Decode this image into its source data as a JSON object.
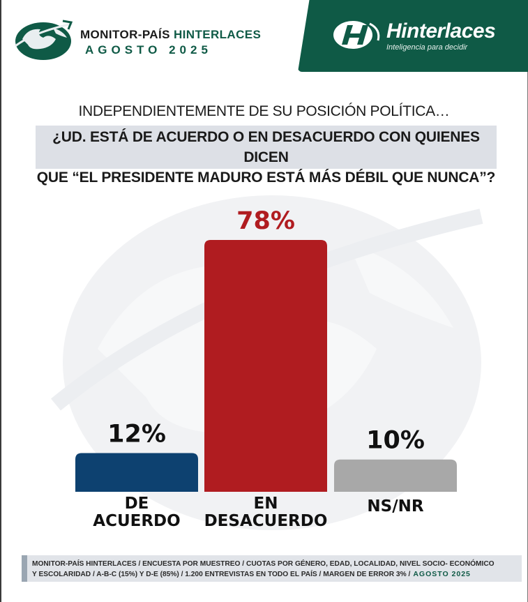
{
  "header": {
    "brand_prefix": "MONITOR-PAÍS ",
    "brand_accent": "HINTERLACES",
    "edition": "AGOSTO 2025",
    "company_name": "Hinterlaces",
    "company_tagline": "Inteligencia para decidir"
  },
  "question": {
    "intro": "INDEPENDIENTEMENTE DE SU POSICIÓN POLÍTICA…",
    "line1": "¿UD. ESTÁ DE ACUERDO O EN DESACUERDO CON QUIENES DICEN",
    "line2": "QUE “EL PRESIDENTE MADURO ESTÁ MÁS DÉBIL QUE NUNCA”?"
  },
  "chart_data": {
    "type": "bar",
    "categories": [
      [
        "DE",
        "ACUERDO"
      ],
      [
        "EN",
        "DESACUERDO"
      ],
      [
        "NS/NR"
      ]
    ],
    "values": [
      12,
      78,
      10
    ],
    "value_labels": [
      "12%",
      "78%",
      "10%"
    ],
    "colors": [
      "#0d4170",
      "#b01c20",
      "#a8a8a8"
    ],
    "label_colors": [
      "#111111",
      "#b01c20",
      "#111111"
    ],
    "ylim": [
      0,
      100
    ],
    "grid": false,
    "legend": "none"
  },
  "colors": {
    "brand_green": "#0f5a46",
    "question_bg": "#dde0e6"
  },
  "footer": {
    "line1": "MONITOR-PAÍS HINTERLACES / ENCUESTA POR MUESTREO / CUOTAS POR GÉNERO, EDAD, LOCALIDAD,  NIVEL SOCIO- ECONÓMICO",
    "line2": "Y ESCOLARIDAD / A-B-C (15%) Y D-E (85%) / 1.200 ENTREVISTAS EN TODO EL PAÍS  / MARGEN DE ERROR 3% /",
    "date": "AGOSTO 2025"
  }
}
